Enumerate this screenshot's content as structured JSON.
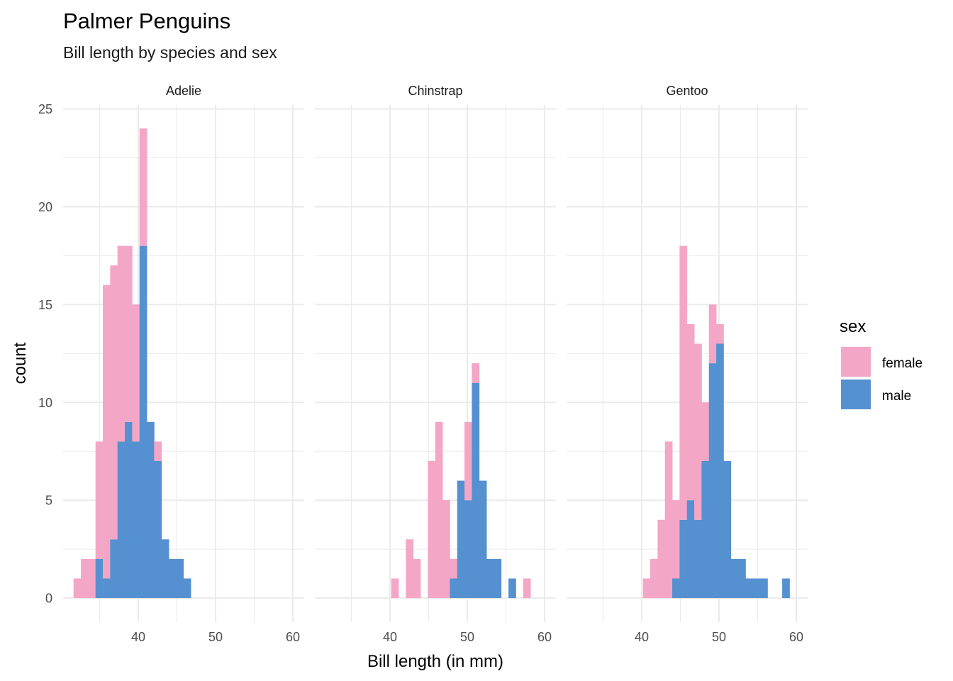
{
  "chart_data": {
    "type": "bar",
    "subtype": "stacked-histogram-faceted",
    "title": "Palmer Penguins",
    "subtitle": "Bill length by species and sex",
    "xlabel": "Bill length (in mm)",
    "ylabel": "count",
    "xlim": [
      30.28,
      61.47
    ],
    "ylim": [
      -1.23,
      25.2
    ],
    "x_ticks": [
      40,
      50,
      60
    ],
    "x_minor_ticks": [
      35,
      45,
      55
    ],
    "y_ticks": [
      0,
      5,
      10,
      15,
      20,
      25
    ],
    "y_tick_labels": [
      "0",
      "5",
      "10",
      "15",
      "20",
      "25"
    ],
    "y_minor_ticks": [
      2.5,
      7.5,
      12.5,
      17.5,
      22.5
    ],
    "x_tick_labels": [
      "40",
      "50",
      "60"
    ],
    "grid": true,
    "bins": {
      "first_center": 32.1,
      "width": 0.9483,
      "count": 30
    },
    "legend": {
      "title": "sex",
      "position": "right",
      "entries": [
        {
          "label": "female",
          "color": "#F4A6C6"
        },
        {
          "label": "male",
          "color": "#5591D0"
        }
      ]
    },
    "panels": [
      {
        "label": "Adelie",
        "series": [
          {
            "name": "female",
            "values": [
              1,
              2,
              2,
              6,
              15,
              14,
              10,
              9,
              7,
              6,
              0,
              1,
              0,
              0,
              0,
              0,
              0,
              0,
              0,
              0,
              0,
              0,
              0,
              0,
              0,
              0,
              0,
              0,
              0,
              0
            ]
          },
          {
            "name": "male",
            "values": [
              0,
              0,
              0,
              2,
              1,
              3,
              8,
              9,
              8,
              18,
              9,
              7,
              3,
              2,
              2,
              1,
              0,
              0,
              0,
              0,
              0,
              0,
              0,
              0,
              0,
              0,
              0,
              0,
              0,
              0
            ]
          }
        ]
      },
      {
        "label": "Chinstrap",
        "series": [
          {
            "name": "female",
            "values": [
              0,
              0,
              0,
              0,
              0,
              0,
              0,
              0,
              0,
              1,
              0,
              3,
              2,
              0,
              7,
              9,
              5,
              1,
              0,
              4,
              1,
              0,
              0,
              0,
              0,
              0,
              0,
              1,
              0,
              0
            ]
          },
          {
            "name": "male",
            "values": [
              0,
              0,
              0,
              0,
              0,
              0,
              0,
              0,
              0,
              0,
              0,
              0,
              0,
              0,
              0,
              0,
              0,
              1,
              6,
              5,
              11,
              6,
              2,
              2,
              0,
              1,
              0,
              0,
              0,
              0
            ]
          }
        ]
      },
      {
        "label": "Gentoo",
        "series": [
          {
            "name": "female",
            "values": [
              0,
              0,
              0,
              0,
              0,
              0,
              0,
              0,
              0,
              1,
              2,
              4,
              8,
              4,
              14,
              9,
              9,
              3,
              3,
              1,
              0,
              0,
              0,
              0,
              0,
              0,
              0,
              0,
              0,
              0
            ]
          },
          {
            "name": "male",
            "values": [
              0,
              0,
              0,
              0,
              0,
              0,
              0,
              0,
              0,
              0,
              0,
              0,
              0,
              1,
              4,
              5,
              4,
              7,
              12,
              13,
              7,
              2,
              2,
              1,
              1,
              1,
              0,
              0,
              1,
              0
            ]
          }
        ]
      }
    ]
  }
}
